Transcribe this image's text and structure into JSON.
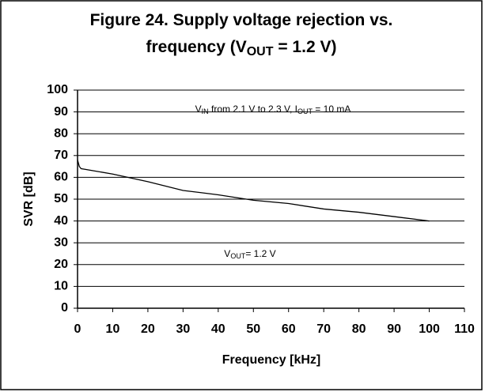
{
  "chart_data": {
    "type": "line",
    "title": [
      "Figure 24. Supply voltage rejection vs.",
      "frequency (V",
      "OUT",
      " = 1.2 V)"
    ],
    "xlabel": "Frequency [kHz]",
    "ylabel": "SVR [dB]",
    "annotations": [
      [
        "V",
        "IN",
        " from 2.1 V to 2.3 V, I",
        "OUT",
        " = 10 mA"
      ],
      [
        "V",
        "OUT",
        "= 1.2 V"
      ]
    ],
    "x": [
      0,
      0.5,
      1,
      10,
      20,
      30,
      40,
      50,
      60,
      70,
      80,
      90,
      100
    ],
    "series": [
      {
        "name": "SVR",
        "color": "#000000",
        "values": [
          68,
          65,
          64,
          61.5,
          58,
          54,
          52,
          49.5,
          48,
          45.5,
          44,
          42,
          40
        ]
      }
    ],
    "xlim": [
      0,
      110
    ],
    "xticks": [
      0,
      10,
      20,
      30,
      40,
      50,
      60,
      70,
      80,
      90,
      100,
      110
    ],
    "ylim": [
      0,
      100
    ],
    "yticks": [
      0,
      10,
      20,
      30,
      40,
      50,
      60,
      70,
      80,
      90,
      100
    ],
    "grid": true
  }
}
